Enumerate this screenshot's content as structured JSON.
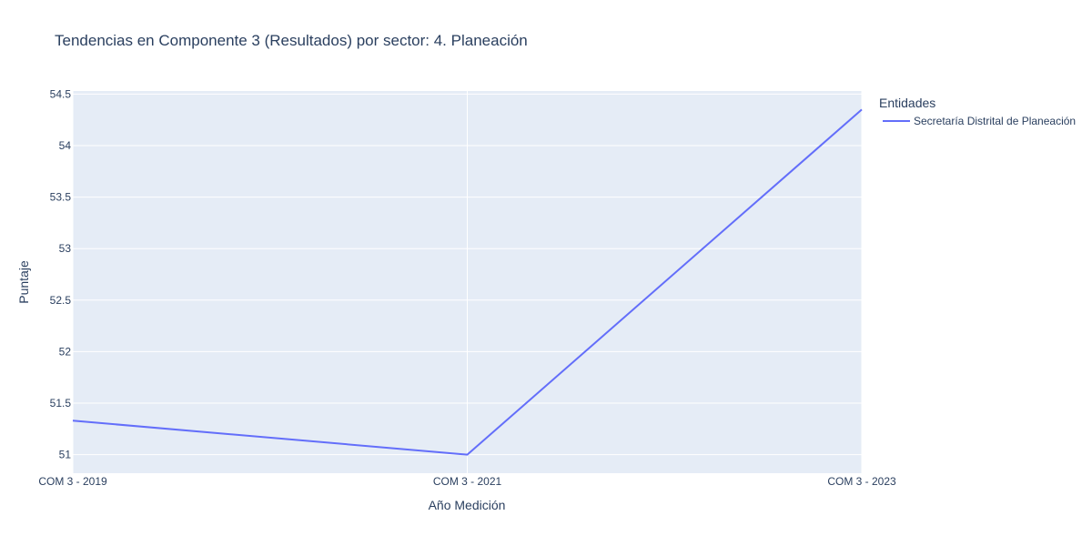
{
  "chart_data": {
    "type": "line",
    "title": "Tendencias en Componente 3 (Resultados) por sector: 4. Planeación",
    "xlabel": "Año Medición",
    "ylabel": "Puntaje",
    "categories": [
      "COM 3 - 2019",
      "COM 3 - 2021",
      "COM 3 - 2023"
    ],
    "yticks": [
      51,
      51.5,
      52,
      52.5,
      53,
      53.5,
      54,
      54.5
    ],
    "ylim": [
      50.82,
      54.53
    ],
    "grid": true,
    "legend_title": "Entidades",
    "legend_position": "top-right",
    "series": [
      {
        "name": "Secretaría Distrital de Planeación",
        "values": [
          51.33,
          51.0,
          54.35
        ],
        "color": "#636efa"
      }
    ]
  },
  "colors": {
    "plot_bg": "#e5ecf6",
    "grid": "#ffffff",
    "text": "#2a3f5f"
  }
}
